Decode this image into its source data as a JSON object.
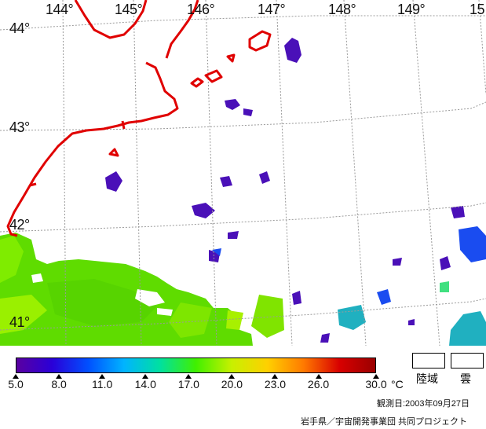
{
  "map": {
    "lon_labels": [
      "144°",
      "145°",
      "146°",
      "147°",
      "148°",
      "149°",
      "15"
    ],
    "lat_labels": [
      "44°",
      "43°",
      "42°",
      "41°"
    ],
    "colors": {
      "coastline": "#e00000",
      "grid": "#9a9a9a",
      "land": "#ffffff",
      "cloud": "#ffffff"
    }
  },
  "legend": {
    "ticks": [
      "5.0",
      "8.0",
      "11.0",
      "14.0",
      "17.0",
      "20.0",
      "23.0",
      "26.0",
      "30.0"
    ],
    "unit": "°C",
    "land_label": "陸域",
    "cloud_label": "雲",
    "gradient_colors": [
      "#5a00a0",
      "#2a00d8",
      "#0050ff",
      "#00b4ff",
      "#00e0a0",
      "#40f000",
      "#c8f000",
      "#ffd000",
      "#ff7a00",
      "#d80000",
      "#9a0000"
    ]
  },
  "observation_date": "観測日:2003年09月27日",
  "credit": "岩手県／宇宙開発事業団 共同プロジェクト"
}
